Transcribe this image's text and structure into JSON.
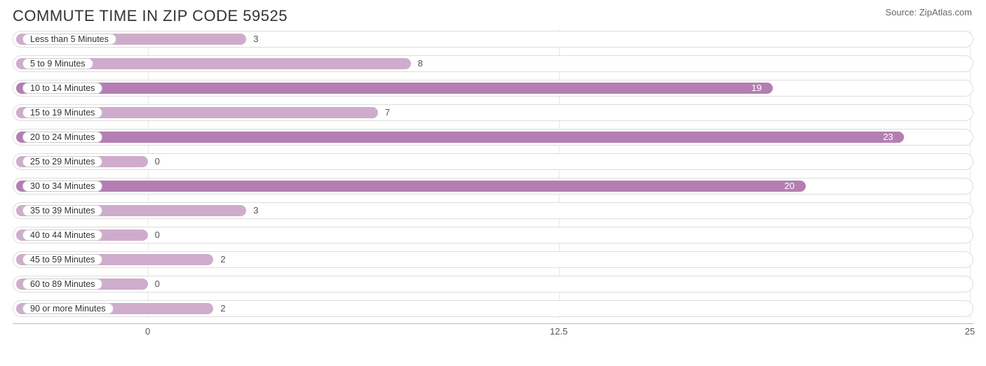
{
  "header": {
    "title": "COMMUTE TIME IN ZIP CODE 59525",
    "source": "Source: ZipAtlas.com"
  },
  "chart": {
    "type": "bar-horizontal",
    "background_color": "#ffffff",
    "track_border_color": "#dddddd",
    "bar_colors": {
      "light": "#cfaccb",
      "dark": "#b47eb3"
    },
    "x_axis": {
      "min": 0,
      "max": 25,
      "ticks": [
        {
          "value": 0,
          "label": "0"
        },
        {
          "value": 12.5,
          "label": "12.5"
        },
        {
          "value": 25,
          "label": "25"
        }
      ]
    },
    "bar_origin_value": -4,
    "categories": [
      {
        "label": "Less than 5 Minutes",
        "value": 3,
        "shade": "light",
        "value_color": "#555555",
        "value_pos": "outside"
      },
      {
        "label": "5 to 9 Minutes",
        "value": 8,
        "shade": "light",
        "value_color": "#555555",
        "value_pos": "outside"
      },
      {
        "label": "10 to 14 Minutes",
        "value": 19,
        "shade": "dark",
        "value_color": "#ffffff",
        "value_pos": "inside"
      },
      {
        "label": "15 to 19 Minutes",
        "value": 7,
        "shade": "light",
        "value_color": "#555555",
        "value_pos": "outside"
      },
      {
        "label": "20 to 24 Minutes",
        "value": 23,
        "shade": "dark",
        "value_color": "#ffffff",
        "value_pos": "inside"
      },
      {
        "label": "25 to 29 Minutes",
        "value": 0,
        "shade": "light",
        "value_color": "#555555",
        "value_pos": "outside"
      },
      {
        "label": "30 to 34 Minutes",
        "value": 20,
        "shade": "dark",
        "value_color": "#ffffff",
        "value_pos": "inside"
      },
      {
        "label": "35 to 39 Minutes",
        "value": 3,
        "shade": "light",
        "value_color": "#555555",
        "value_pos": "outside"
      },
      {
        "label": "40 to 44 Minutes",
        "value": 0,
        "shade": "light",
        "value_color": "#555555",
        "value_pos": "outside"
      },
      {
        "label": "45 to 59 Minutes",
        "value": 2,
        "shade": "light",
        "value_color": "#555555",
        "value_pos": "outside"
      },
      {
        "label": "60 to 89 Minutes",
        "value": 0,
        "shade": "light",
        "value_color": "#555555",
        "value_pos": "outside"
      },
      {
        "label": "90 or more Minutes",
        "value": 2,
        "shade": "light",
        "value_color": "#555555",
        "value_pos": "outside"
      }
    ]
  }
}
